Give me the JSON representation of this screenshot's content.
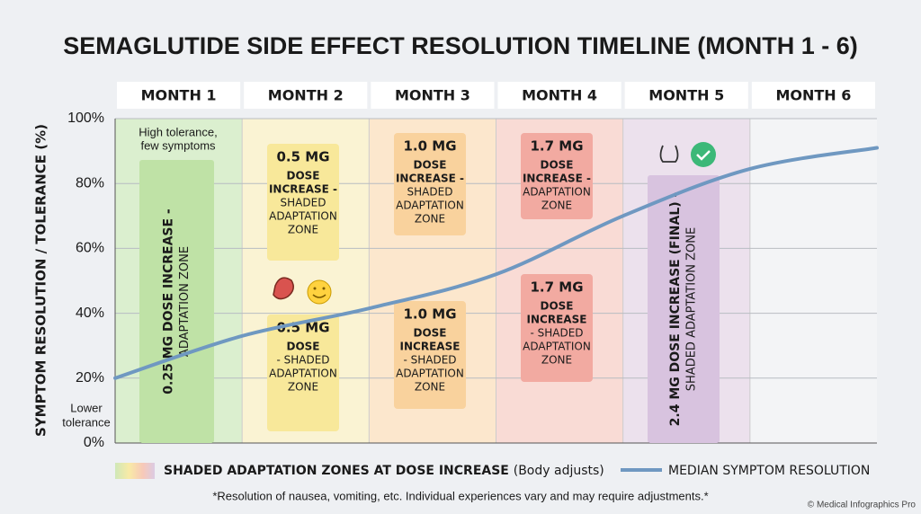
{
  "chart_data": {
    "type": "line",
    "title": "SEMAGLUTIDE SIDE EFFECT RESOLUTION TIMELINE (MONTH 1 - 6)",
    "y_label": "SYMPTOM RESOLUTION / TOLERANCE (%)",
    "categories": [
      "MONTH 1",
      "MONTH 2",
      "MONTH 3",
      "MONTH 4",
      "MONTH 5",
      "MONTH 6"
    ],
    "x": [
      0,
      1,
      2,
      3,
      4,
      5,
      6
    ],
    "xlim": [
      0,
      6
    ],
    "ylim": [
      0,
      100
    ],
    "yticks": [
      {
        "value": 0,
        "label": "0%"
      },
      {
        "value": 20,
        "label": "20%"
      },
      {
        "value": 40,
        "label": "40%"
      },
      {
        "value": 60,
        "label": "60%"
      },
      {
        "value": 80,
        "label": "80%"
      },
      {
        "value": 100,
        "label": "100%"
      }
    ],
    "grid": true,
    "series": [
      {
        "name": "MEDIAN SYMPTOM RESOLUTION",
        "color": "#6f98c1",
        "values": [
          20,
          33,
          41.5,
          52,
          70,
          84.5,
          91
        ]
      }
    ],
    "annotations": [
      "High tolerance,",
      "few symptoms",
      "Lower",
      "tolerance"
    ],
    "zone_colors": [
      "#d8eecb",
      "#fbf3cf",
      "#fde6c9",
      "#f9d8d1",
      "#ebdfec",
      null
    ],
    "vertical_zones": [
      {
        "bold": "0.25 MG DOSE INCREASE -",
        "regular": "ADAPTATION ZONE"
      },
      {
        "bold": "2.4 MG DOSE INCREASE (FINAL) -",
        "regular": "SHADED ADAPTATION ZONE"
      }
    ],
    "zone_boxes": [
      {
        "lines": [
          "0.5 MG",
          "DOSE",
          "INCREASE -",
          "SHADED",
          "ADAPTATION",
          "ZONE"
        ]
      },
      {
        "lines": [
          "0.5 MG",
          "DOSE",
          "- SHADED",
          "ADAPTATION",
          "ZONE"
        ]
      },
      {
        "lines": [
          "1.0 MG",
          "DOSE",
          "INCREASE -",
          "SHADED",
          "ADAPTATION",
          "ZONE"
        ]
      },
      {
        "lines": [
          "1.0 MG",
          "DOSE",
          "INCREASE",
          "- SHADED",
          "ADAPTATION",
          "ZONE"
        ]
      },
      {
        "lines": [
          "1.7 MG",
          "DOSE",
          "INCREASE -",
          "ADAPTATION",
          "ZONE"
        ]
      },
      {
        "lines": [
          "1.7 MG",
          "DOSE",
          "INCREASE",
          "- SHADED",
          "ADAPTATION",
          "ZONE"
        ]
      }
    ],
    "shading_legend": {
      "bold": "SHADED ADAPTATION ZONES AT DOSE INCREASE",
      "regular": "(Body adjusts)"
    },
    "footnote": "*Resolution of nausea, vomiting, etc. Individual experiences vary and may require adjustments.*",
    "credit": "© Medical Infographics Pro"
  }
}
